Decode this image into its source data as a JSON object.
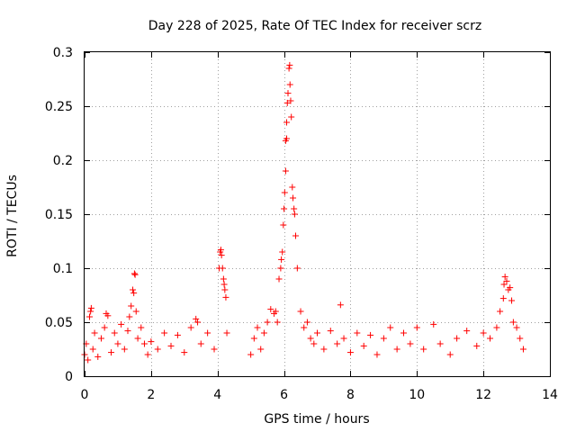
{
  "chart_data": {
    "type": "scatter",
    "title": "Day 228 of 2025, Rate Of TEC Index for receiver scrz",
    "xlabel": "GPS time / hours",
    "ylabel": "ROTI / TECUs",
    "xlim": [
      0,
      14
    ],
    "ylim": [
      0,
      0.3
    ],
    "x_ticks": [
      0,
      2,
      4,
      6,
      8,
      10,
      12,
      14
    ],
    "x_tick_labels": [
      "0",
      "2",
      "4",
      "6",
      "8",
      "10",
      "12",
      "14"
    ],
    "y_ticks": [
      0,
      0.05,
      0.1,
      0.15,
      0.2,
      0.25,
      0.3
    ],
    "y_tick_labels": [
      "0",
      "0.05",
      "0.1",
      "0.15",
      "0.2",
      "0.25",
      "0.3"
    ],
    "grid": true,
    "marker": "+",
    "color": "#ff0000",
    "data_gap_hours": [
      4.3,
      5.0
    ],
    "series": [
      {
        "name": "ROTI",
        "points": [
          [
            0.0,
            0.02
          ],
          [
            0.05,
            0.03
          ],
          [
            0.1,
            0.015
          ],
          [
            0.15,
            0.055
          ],
          [
            0.18,
            0.06
          ],
          [
            0.2,
            0.063
          ],
          [
            0.25,
            0.025
          ],
          [
            0.3,
            0.04
          ],
          [
            0.4,
            0.018
          ],
          [
            0.5,
            0.035
          ],
          [
            0.6,
            0.045
          ],
          [
            0.65,
            0.058
          ],
          [
            0.7,
            0.056
          ],
          [
            0.8,
            0.022
          ],
          [
            0.9,
            0.04
          ],
          [
            1.0,
            0.03
          ],
          [
            1.1,
            0.048
          ],
          [
            1.2,
            0.025
          ],
          [
            1.3,
            0.042
          ],
          [
            1.35,
            0.055
          ],
          [
            1.4,
            0.065
          ],
          [
            1.45,
            0.08
          ],
          [
            1.48,
            0.077
          ],
          [
            1.5,
            0.095
          ],
          [
            1.52,
            0.094
          ],
          [
            1.55,
            0.06
          ],
          [
            1.6,
            0.035
          ],
          [
            1.7,
            0.045
          ],
          [
            1.8,
            0.03
          ],
          [
            1.9,
            0.02
          ],
          [
            2.0,
            0.032
          ],
          [
            2.2,
            0.025
          ],
          [
            2.4,
            0.04
          ],
          [
            2.6,
            0.028
          ],
          [
            2.8,
            0.038
          ],
          [
            3.0,
            0.022
          ],
          [
            3.2,
            0.045
          ],
          [
            3.35,
            0.053
          ],
          [
            3.4,
            0.05
          ],
          [
            3.5,
            0.03
          ],
          [
            3.7,
            0.04
          ],
          [
            3.9,
            0.025
          ],
          [
            4.05,
            0.1
          ],
          [
            4.08,
            0.115
          ],
          [
            4.1,
            0.117
          ],
          [
            4.12,
            0.112
          ],
          [
            4.15,
            0.1
          ],
          [
            4.18,
            0.09
          ],
          [
            4.2,
            0.085
          ],
          [
            4.22,
            0.08
          ],
          [
            4.25,
            0.073
          ],
          [
            4.28,
            0.04
          ],
          [
            5.0,
            0.02
          ],
          [
            5.1,
            0.035
          ],
          [
            5.2,
            0.045
          ],
          [
            5.3,
            0.025
          ],
          [
            5.4,
            0.04
          ],
          [
            5.5,
            0.05
          ],
          [
            5.6,
            0.062
          ],
          [
            5.7,
            0.058
          ],
          [
            5.75,
            0.06
          ],
          [
            5.8,
            0.05
          ],
          [
            5.85,
            0.09
          ],
          [
            5.9,
            0.1
          ],
          [
            5.92,
            0.108
          ],
          [
            5.95,
            0.115
          ],
          [
            5.98,
            0.14
          ],
          [
            6.0,
            0.155
          ],
          [
            6.02,
            0.17
          ],
          [
            6.05,
            0.19
          ],
          [
            6.05,
            0.218
          ],
          [
            6.08,
            0.235
          ],
          [
            6.08,
            0.22
          ],
          [
            6.1,
            0.253
          ],
          [
            6.12,
            0.262
          ],
          [
            6.15,
            0.285
          ],
          [
            6.17,
            0.288
          ],
          [
            6.18,
            0.27
          ],
          [
            6.2,
            0.255
          ],
          [
            6.22,
            0.24
          ],
          [
            6.25,
            0.175
          ],
          [
            6.27,
            0.165
          ],
          [
            6.3,
            0.155
          ],
          [
            6.32,
            0.15
          ],
          [
            6.35,
            0.13
          ],
          [
            6.4,
            0.1
          ],
          [
            6.5,
            0.06
          ],
          [
            6.6,
            0.045
          ],
          [
            6.7,
            0.05
          ],
          [
            6.8,
            0.035
          ],
          [
            6.9,
            0.03
          ],
          [
            7.0,
            0.04
          ],
          [
            7.2,
            0.025
          ],
          [
            7.4,
            0.042
          ],
          [
            7.6,
            0.03
          ],
          [
            7.7,
            0.066
          ],
          [
            7.8,
            0.035
          ],
          [
            8.0,
            0.022
          ],
          [
            8.2,
            0.04
          ],
          [
            8.4,
            0.028
          ],
          [
            8.6,
            0.038
          ],
          [
            8.8,
            0.02
          ],
          [
            9.0,
            0.035
          ],
          [
            9.2,
            0.045
          ],
          [
            9.4,
            0.025
          ],
          [
            9.6,
            0.04
          ],
          [
            9.8,
            0.03
          ],
          [
            10.0,
            0.045
          ],
          [
            10.2,
            0.025
          ],
          [
            10.5,
            0.048
          ],
          [
            10.7,
            0.03
          ],
          [
            11.0,
            0.02
          ],
          [
            11.2,
            0.035
          ],
          [
            11.5,
            0.042
          ],
          [
            11.8,
            0.028
          ],
          [
            12.0,
            0.04
          ],
          [
            12.2,
            0.035
          ],
          [
            12.4,
            0.045
          ],
          [
            12.5,
            0.06
          ],
          [
            12.6,
            0.072
          ],
          [
            12.62,
            0.085
          ],
          [
            12.65,
            0.092
          ],
          [
            12.7,
            0.088
          ],
          [
            12.75,
            0.08
          ],
          [
            12.8,
            0.082
          ],
          [
            12.85,
            0.07
          ],
          [
            12.9,
            0.05
          ],
          [
            13.0,
            0.045
          ],
          [
            13.1,
            0.035
          ],
          [
            13.2,
            0.025
          ]
        ]
      }
    ]
  }
}
